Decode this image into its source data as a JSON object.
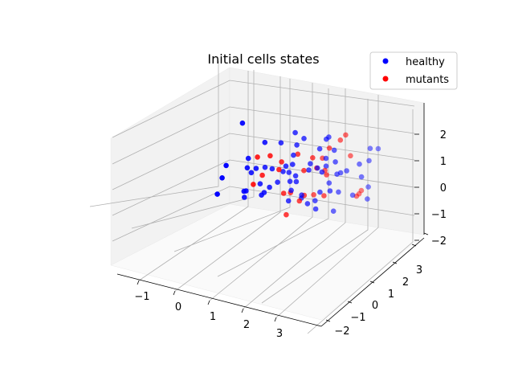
{
  "chart_data": {
    "type": "scatter",
    "projection": "3d",
    "title": "Initial cells states",
    "xlabel": "",
    "ylabel": "",
    "zlabel": "",
    "xlim": [
      -1.8,
      3.8
    ],
    "ylim": [
      -2.8,
      3.4
    ],
    "zlim": [
      -2.2,
      2.9
    ],
    "xticks": [
      -1,
      0,
      1,
      2,
      3
    ],
    "yticks": [
      -2,
      -1,
      0,
      1,
      2,
      3
    ],
    "zticks": [
      -2,
      -1,
      0,
      1,
      2
    ],
    "grid": true,
    "legend": {
      "position": "top-right"
    },
    "series": [
      {
        "name": "healthy",
        "color": "#0000ff",
        "points": [
          [
            -0.3,
            -1.2,
            -0.9
          ],
          [
            0.5,
            -1.5,
            -0.6
          ],
          [
            1.8,
            0.1,
            0.3
          ],
          [
            -0.9,
            0.8,
            0.4
          ],
          [
            0.2,
            0.3,
            1.2
          ],
          [
            1.1,
            -0.4,
            -0.2
          ],
          [
            0.0,
            0.0,
            0.1
          ],
          [
            -0.5,
            -0.6,
            -0.3
          ],
          [
            0.8,
            0.9,
            0.2
          ],
          [
            1.5,
            1.2,
            0.9
          ],
          [
            -1.0,
            -0.3,
            0.6
          ],
          [
            0.3,
            -0.9,
            -1.3
          ],
          [
            2.2,
            0.5,
            -0.1
          ],
          [
            0.6,
            1.6,
            0.0
          ],
          [
            -0.2,
            0.4,
            -0.7
          ],
          [
            1.3,
            -1.1,
            0.4
          ],
          [
            0.9,
            0.2,
            -1.0
          ],
          [
            -0.7,
            1.2,
            -0.4
          ],
          [
            0.1,
            -0.2,
            0.8
          ],
          [
            1.7,
            -0.3,
            -0.8
          ],
          [
            0.4,
            0.7,
            0.5
          ],
          [
            -0.4,
            -1.4,
            0.2
          ],
          [
            1.0,
            1.4,
            1.1
          ],
          [
            2.5,
            1.0,
            0.6
          ],
          [
            0.7,
            -0.7,
            0.0
          ],
          [
            -0.1,
            0.9,
            0.9
          ],
          [
            1.4,
            0.3,
            -0.4
          ],
          [
            0.2,
            -0.1,
            -0.5
          ],
          [
            -0.8,
            0.1,
            -0.1
          ],
          [
            0.5,
            0.5,
            0.3
          ],
          [
            1.9,
            -0.8,
            0.7
          ],
          [
            0.0,
            1.1,
            -0.2
          ],
          [
            1.2,
            -0.1,
            1.4
          ],
          [
            -0.3,
            -0.5,
            1.0
          ],
          [
            0.8,
            -1.3,
            -0.9
          ],
          [
            2.0,
            1.3,
            0.1
          ],
          [
            0.3,
            0.0,
            -0.2
          ],
          [
            1.6,
            0.6,
            -0.5
          ],
          [
            -0.6,
            0.5,
            0.2
          ],
          [
            0.9,
            -0.5,
            0.6
          ],
          [
            1.1,
            0.8,
            -0.1
          ],
          [
            0.4,
            -0.3,
            0.1
          ],
          [
            2.3,
            -0.2,
            -0.3
          ],
          [
            -0.2,
            1.5,
            0.5
          ],
          [
            0.6,
            0.1,
            -0.8
          ],
          [
            1.3,
            1.0,
            0.4
          ],
          [
            0.1,
            -0.8,
            0.3
          ],
          [
            -1.1,
            0.2,
            1.6
          ],
          [
            1.4,
            2.1,
            1.4
          ],
          [
            0.7,
            0.4,
            0.9
          ],
          [
            1.8,
            -0.6,
            -1.1
          ],
          [
            0.2,
            0.6,
            -0.3
          ],
          [
            1.0,
            -0.2,
            0.2
          ],
          [
            -0.4,
            0.3,
            -0.9
          ],
          [
            2.1,
            0.2,
            0.5
          ],
          [
            0.5,
            -0.4,
            -0.1
          ],
          [
            1.2,
            1.7,
            0.7
          ],
          [
            -0.5,
            -0.9,
            0.5
          ],
          [
            0.9,
            0.7,
            -0.6
          ],
          [
            1.5,
            -0.9,
            0.1
          ],
          [
            0.3,
            1.3,
            0.0
          ],
          [
            2.4,
            0.8,
            -0.6
          ],
          [
            0.0,
            -0.6,
            -0.4
          ],
          [
            1.7,
            0.4,
            1.0
          ],
          [
            0.8,
            -0.1,
            -1.4
          ]
        ]
      },
      {
        "name": "mutants",
        "color": "#ff0000",
        "points": [
          [
            0.6,
            0.2,
            0.8
          ],
          [
            1.4,
            -0.5,
            0.5
          ],
          [
            0.2,
            -0.3,
            -0.2
          ],
          [
            2.0,
            0.9,
            1.0
          ],
          [
            -0.6,
            -0.1,
            0.3
          ],
          [
            1.0,
            0.5,
            -0.7
          ],
          [
            0.3,
            1.0,
            1.1
          ],
          [
            1.7,
            -0.4,
            -0.9
          ],
          [
            0.5,
            -1.0,
            0.6
          ],
          [
            -0.3,
            0.6,
            -0.3
          ],
          [
            1.2,
            0.0,
            0.2
          ],
          [
            0.8,
            1.3,
            0.7
          ],
          [
            2.2,
            -0.1,
            -0.4
          ],
          [
            0.1,
            0.2,
            0.4
          ],
          [
            1.5,
            0.8,
            -0.2
          ],
          [
            -0.8,
            -0.5,
            -0.5
          ],
          [
            0.9,
            -0.8,
            1.0
          ],
          [
            1.9,
            1.5,
            0.4
          ],
          [
            0.4,
            0.4,
            -0.6
          ],
          [
            1.1,
            -0.2,
            0.9
          ],
          [
            2.6,
            0.3,
            -0.2
          ],
          [
            0.7,
            -0.4,
            -1.1
          ],
          [
            3.0,
            1.6,
            2.0
          ],
          [
            3.2,
            2.0,
            0.9
          ],
          [
            1.6,
            0.3,
            0.3
          ],
          [
            0.0,
            -0.7,
            0.0
          ],
          [
            1.3,
            1.1,
            -0.8
          ]
        ]
      }
    ]
  }
}
